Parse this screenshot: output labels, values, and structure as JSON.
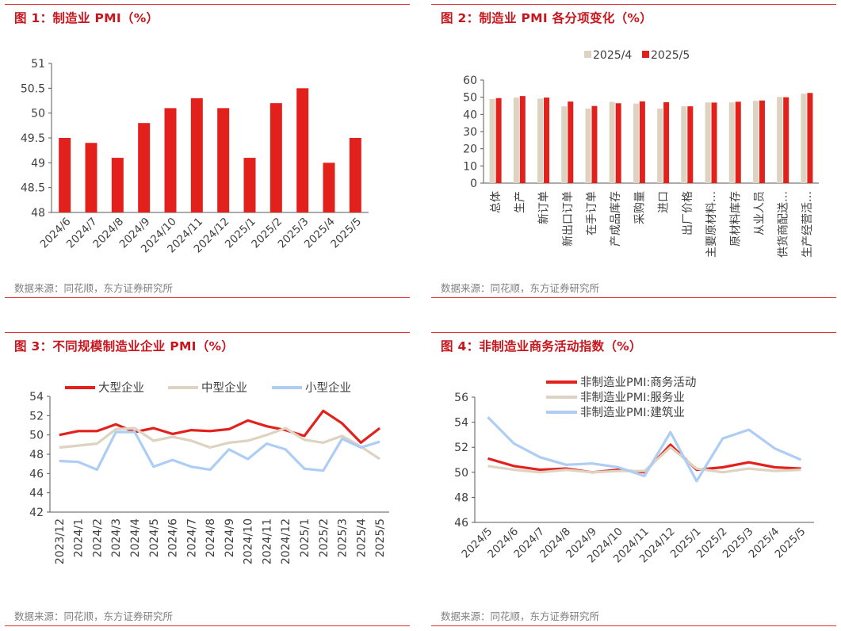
{
  "chart_data": [
    {
      "type": "bar",
      "title": "图 1：制造业 PMI（%）",
      "source": "数据来源：同花顺，东方证券研究所",
      "categories": [
        "2024/6",
        "2024/7",
        "2024/8",
        "2024/9",
        "2024/10",
        "2024/11",
        "2024/12",
        "2025/1",
        "2025/2",
        "2025/3",
        "2025/4",
        "2025/5"
      ],
      "values": [
        49.5,
        49.4,
        49.1,
        49.8,
        50.1,
        50.3,
        50.1,
        49.1,
        50.2,
        50.5,
        49.0,
        49.5
      ],
      "yticks": [
        "51",
        "50.5",
        "50",
        "49.5",
        "49",
        "48.5",
        "48"
      ],
      "ylim": [
        48,
        51
      ],
      "color": "#e3211c"
    },
    {
      "type": "bar",
      "title": "图 2：制造业 PMI 各分项变化（%）",
      "source": "数据来源：同花顺，东方证券研究所",
      "categories": [
        "总体",
        "生产",
        "新订单",
        "新出口订单",
        "在手订单",
        "产成品库存",
        "采购量",
        "进口",
        "出厂价格",
        "主要原材料…",
        "原材料库存",
        "从业人员",
        "供货商配送…",
        "生产经营活…"
      ],
      "series": [
        {
          "name": "2025/4",
          "color": "#ddd3c0",
          "values": [
            49.0,
            49.8,
            49.2,
            44.7,
            43.4,
            47.3,
            46.3,
            43.4,
            44.8,
            47.0,
            47.0,
            47.9,
            50.2,
            52.1
          ]
        },
        {
          "name": "2025/5",
          "color": "#e3211c",
          "values": [
            49.5,
            50.7,
            49.8,
            47.5,
            44.9,
            46.5,
            47.6,
            47.1,
            44.7,
            46.9,
            47.4,
            48.1,
            50.0,
            52.5
          ]
        }
      ],
      "yticks": [
        "60",
        "50",
        "40",
        "30",
        "20",
        "10",
        "0"
      ],
      "ylim": [
        0,
        60
      ]
    },
    {
      "type": "line",
      "title": "图 3：不同规模制造业企业 PMI（%）",
      "source": "数据来源：同花顺，东方证券研究所",
      "x": [
        "2023/12",
        "2024/1",
        "2024/2",
        "2024/3",
        "2024/4",
        "2024/5",
        "2024/6",
        "2024/7",
        "2024/8",
        "2024/9",
        "2024/10",
        "2024/11",
        "2024/12",
        "2025/1",
        "2025/2",
        "2025/3",
        "2025/4",
        "2025/5"
      ],
      "series": [
        {
          "name": "大型企业",
          "color": "#e3211c",
          "values": [
            50.0,
            50.4,
            50.4,
            51.1,
            50.3,
            50.7,
            50.1,
            50.5,
            50.4,
            50.6,
            51.5,
            50.9,
            50.5,
            49.9,
            52.5,
            51.2,
            49.2,
            50.7
          ]
        },
        {
          "name": "中型企业",
          "color": "#ddd3c0",
          "values": [
            48.7,
            48.9,
            49.1,
            50.6,
            50.7,
            49.4,
            49.8,
            49.4,
            48.7,
            49.2,
            49.4,
            50.0,
            50.7,
            49.5,
            49.2,
            49.9,
            48.8,
            47.5
          ]
        },
        {
          "name": "小型企业",
          "color": "#aecdf5",
          "values": [
            47.3,
            47.2,
            46.4,
            50.3,
            50.3,
            46.7,
            47.4,
            46.7,
            46.4,
            48.5,
            47.5,
            49.1,
            48.5,
            46.5,
            46.3,
            49.6,
            48.7,
            49.3
          ]
        }
      ],
      "yticks": [
        "54",
        "52",
        "50",
        "48",
        "46",
        "44",
        "42"
      ],
      "ylim": [
        42,
        54
      ]
    },
    {
      "type": "line",
      "title": "图 4：非制造业商务活动指数（%）",
      "source": "数据来源：同花顺，东方证券研究所",
      "x": [
        "2024/5",
        "2024/6",
        "2024/7",
        "2024/8",
        "2024/9",
        "2024/10",
        "2024/11",
        "2024/12",
        "2025/1",
        "2025/2",
        "2025/3",
        "2025/4",
        "2025/5"
      ],
      "series": [
        {
          "name": "非制造业PMI:商务活动",
          "color": "#e3211c",
          "values": [
            51.1,
            50.5,
            50.2,
            50.3,
            50.0,
            50.2,
            50.0,
            52.2,
            50.2,
            50.4,
            50.8,
            50.4,
            50.3
          ]
        },
        {
          "name": "非制造业PMI:服务业",
          "color": "#ddd3c0",
          "values": [
            50.5,
            50.2,
            50.0,
            50.2,
            50.0,
            50.1,
            50.1,
            52.0,
            50.3,
            50.0,
            50.3,
            50.1,
            50.2
          ]
        },
        {
          "name": "非制造业PMI:建筑业",
          "color": "#aecdf5",
          "values": [
            54.4,
            52.3,
            51.2,
            50.6,
            50.7,
            50.4,
            49.7,
            53.2,
            49.3,
            52.7,
            53.4,
            51.9,
            51.0
          ]
        }
      ],
      "yticks": [
        "56",
        "54",
        "52",
        "50",
        "48",
        "46"
      ],
      "ylim": [
        46,
        56
      ]
    }
  ]
}
